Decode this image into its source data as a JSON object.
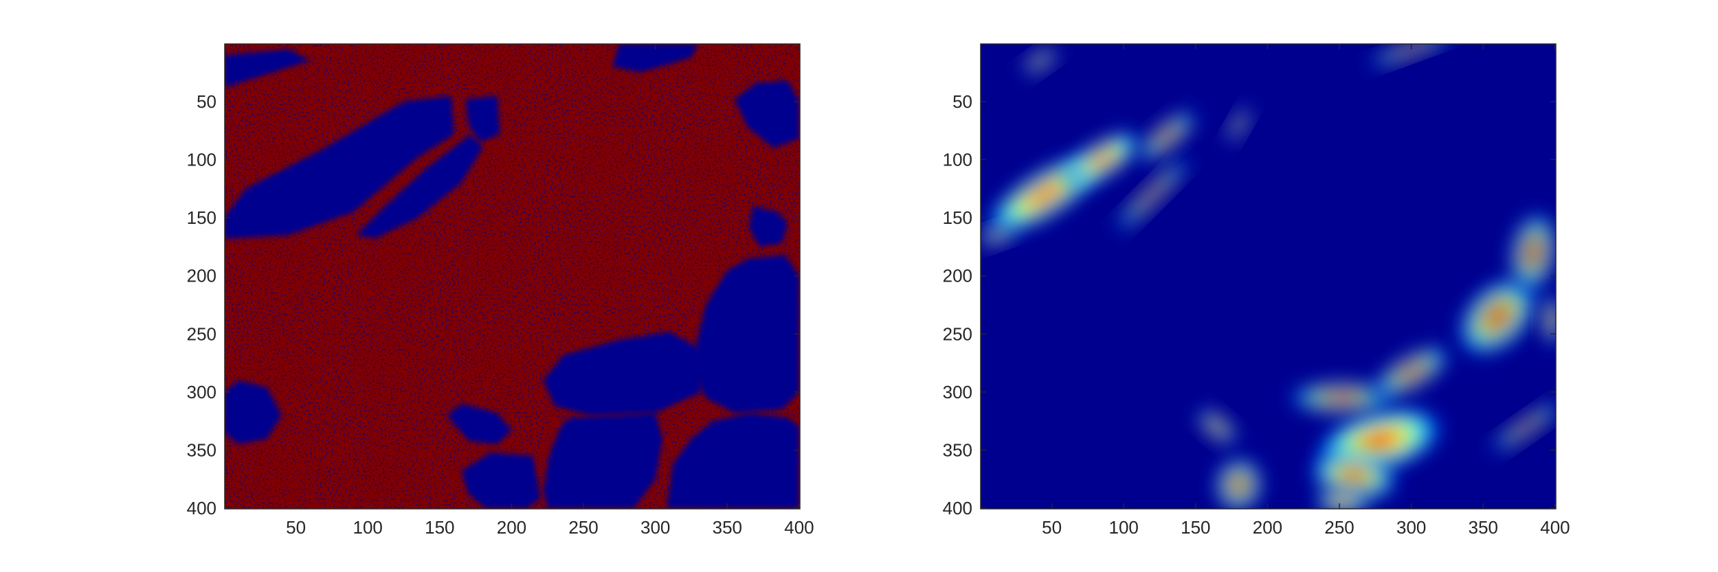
{
  "chart_data": [
    {
      "type": "heatmap",
      "title": "",
      "xlabel": "",
      "ylabel": "",
      "xlim": [
        0.5,
        400.5
      ],
      "ylim": [
        0.5,
        400.5
      ],
      "y_reversed": true,
      "x_ticks": [
        50,
        100,
        150,
        200,
        250,
        300,
        350,
        400
      ],
      "y_ticks": [
        50,
        100,
        150,
        200,
        250,
        300,
        350,
        400
      ],
      "x_tick_labels": [
        "50",
        "100",
        "150",
        "200",
        "250",
        "300",
        "350",
        "400"
      ],
      "y_tick_labels": [
        "50",
        "100",
        "150",
        "200",
        "250",
        "300",
        "350",
        "400"
      ],
      "colormap": "jet",
      "value_range": [
        0,
        1
      ],
      "colors": {
        "low": "#00008f",
        "high": "#800000"
      },
      "grid": false,
      "regions_low": [
        {
          "points": [
            [
              0,
              38
            ],
            [
              60,
              15
            ],
            [
              45,
              5
            ],
            [
              0,
              10
            ]
          ]
        },
        {
          "points": [
            [
              0,
              150
            ],
            [
              15,
              125
            ],
            [
              70,
              90
            ],
            [
              125,
              50
            ],
            [
              158,
              45
            ],
            [
              160,
              78
            ],
            [
              135,
              98
            ],
            [
              90,
              145
            ],
            [
              45,
              165
            ],
            [
              0,
              168
            ]
          ]
        },
        {
          "points": [
            [
              92,
              165
            ],
            [
              112,
              140
            ],
            [
              140,
              108
            ],
            [
              172,
              78
            ],
            [
              180,
              90
            ],
            [
              165,
              120
            ],
            [
              135,
              150
            ],
            [
              105,
              168
            ]
          ]
        },
        {
          "points": [
            [
              168,
              48
            ],
            [
              190,
              45
            ],
            [
              192,
              78
            ],
            [
              178,
              85
            ],
            [
              170,
              70
            ]
          ]
        },
        {
          "points": [
            [
              270,
              20
            ],
            [
              275,
              0
            ],
            [
              330,
              0
            ],
            [
              325,
              12
            ],
            [
              290,
              25
            ]
          ]
        },
        {
          "points": [
            [
              355,
              48
            ],
            [
              370,
              34
            ],
            [
              392,
              32
            ],
            [
              400,
              50
            ],
            [
              400,
              82
            ],
            [
              382,
              90
            ],
            [
              364,
              72
            ]
          ]
        },
        {
          "points": [
            [
              368,
              140
            ],
            [
              385,
              145
            ],
            [
              392,
              155
            ],
            [
              388,
              172
            ],
            [
              372,
              175
            ],
            [
              365,
              158
            ]
          ]
        },
        {
          "points": [
            [
              335,
              225
            ],
            [
              350,
              195
            ],
            [
              365,
              185
            ],
            [
              390,
              182
            ],
            [
              400,
              200
            ],
            [
              400,
              300
            ],
            [
              388,
              315
            ],
            [
              355,
              318
            ],
            [
              335,
              305
            ],
            [
              325,
              280
            ],
            [
              330,
              250
            ]
          ]
        },
        {
          "points": [
            [
              222,
              290
            ],
            [
              236,
              268
            ],
            [
              275,
              255
            ],
            [
              310,
              248
            ],
            [
              330,
              262
            ],
            [
              332,
              300
            ],
            [
              300,
              318
            ],
            [
              255,
              320
            ],
            [
              230,
              312
            ]
          ]
        },
        {
          "points": [
            [
              222,
              385
            ],
            [
              226,
              355
            ],
            [
              234,
              330
            ],
            [
              240,
              322
            ],
            [
              275,
              320
            ],
            [
              300,
              318
            ],
            [
              305,
              340
            ],
            [
              300,
              375
            ],
            [
              285,
              400
            ],
            [
              225,
              400
            ]
          ]
        },
        {
          "points": [
            [
              155,
              320
            ],
            [
              165,
              310
            ],
            [
              190,
              318
            ],
            [
              200,
              333
            ],
            [
              190,
              345
            ],
            [
              170,
              342
            ]
          ]
        },
        {
          "points": [
            [
              165,
              368
            ],
            [
              185,
              352
            ],
            [
              215,
              355
            ],
            [
              220,
              392
            ],
            [
              210,
              400
            ],
            [
              182,
              400
            ],
            [
              170,
              388
            ]
          ]
        },
        {
          "points": [
            [
              308,
              400
            ],
            [
              312,
              362
            ],
            [
              325,
              340
            ],
            [
              340,
              325
            ],
            [
              365,
              318
            ],
            [
              392,
              322
            ],
            [
              400,
              330
            ],
            [
              400,
              400
            ]
          ]
        },
        {
          "points": [
            [
              0,
              300
            ],
            [
              10,
              290
            ],
            [
              30,
              296
            ],
            [
              40,
              320
            ],
            [
              30,
              340
            ],
            [
              10,
              345
            ],
            [
              0,
              335
            ]
          ]
        }
      ],
      "hotspots": [
        {
          "x": 45,
          "y": 130,
          "rx": 40,
          "ry": 16,
          "rot": -32,
          "peak": 1.0
        },
        {
          "x": 85,
          "y": 100,
          "rx": 26,
          "ry": 12,
          "rot": -32,
          "peak": 0.95
        },
        {
          "x": 130,
          "y": 80,
          "rx": 22,
          "ry": 9,
          "rot": -40,
          "peak": 0.55
        },
        {
          "x": 120,
          "y": 130,
          "rx": 32,
          "ry": 6,
          "rot": -45,
          "peak": 0.5
        },
        {
          "x": 180,
          "y": 70,
          "rx": 12,
          "ry": 5,
          "rot": -60,
          "peak": 0.4
        },
        {
          "x": 12,
          "y": 165,
          "rx": 12,
          "ry": 6,
          "rot": -20,
          "peak": 0.6
        },
        {
          "x": 42,
          "y": 15,
          "rx": 12,
          "ry": 6,
          "rot": -35,
          "peak": 0.45
        },
        {
          "x": 300,
          "y": 5,
          "rx": 28,
          "ry": 5,
          "rot": -20,
          "peak": 0.55
        },
        {
          "x": 278,
          "y": 342,
          "rx": 38,
          "ry": 22,
          "rot": -15,
          "peak": 1.0
        },
        {
          "x": 260,
          "y": 372,
          "rx": 26,
          "ry": 18,
          "rot": 10,
          "peak": 0.75
        },
        {
          "x": 252,
          "y": 394,
          "rx": 16,
          "ry": 8,
          "rot": 0,
          "peak": 0.9
        },
        {
          "x": 252,
          "y": 305,
          "rx": 32,
          "ry": 12,
          "rot": 0,
          "peak": 0.55
        },
        {
          "x": 300,
          "y": 283,
          "rx": 26,
          "ry": 12,
          "rot": -30,
          "peak": 0.6
        },
        {
          "x": 360,
          "y": 235,
          "rx": 28,
          "ry": 22,
          "rot": -45,
          "peak": 0.7
        },
        {
          "x": 385,
          "y": 180,
          "rx": 14,
          "ry": 30,
          "rot": 10,
          "peak": 0.55
        },
        {
          "x": 398,
          "y": 238,
          "rx": 6,
          "ry": 18,
          "rot": 0,
          "peak": 0.6
        },
        {
          "x": 180,
          "y": 380,
          "rx": 14,
          "ry": 20,
          "rot": 10,
          "peak": 0.6
        },
        {
          "x": 165,
          "y": 330,
          "rx": 14,
          "ry": 8,
          "rot": 40,
          "peak": 0.5
        },
        {
          "x": 380,
          "y": 330,
          "rx": 26,
          "ry": 6,
          "rot": -35,
          "peak": 0.45
        }
      ]
    }
  ]
}
